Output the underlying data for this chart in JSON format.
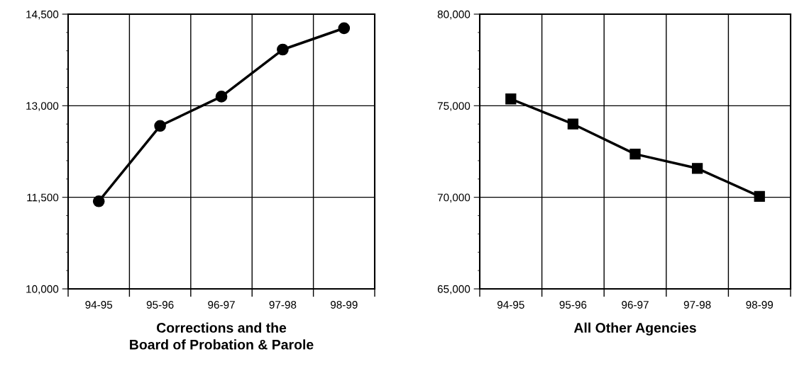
{
  "chart_data": [
    {
      "type": "line",
      "xlabel": "Corrections and the\nBoard of Probation & Parole",
      "categories": [
        "94-95",
        "95-96",
        "96-97",
        "97-98",
        "98-99"
      ],
      "series": [
        {
          "color": "#000000",
          "values": [
            11435,
            12670,
            13150,
            13920,
            14270
          ]
        }
      ],
      "marker": "circle",
      "line_style": "solid",
      "grid": true,
      "legend": false,
      "ylim": [
        10000,
        14500
      ],
      "yticks": [
        {
          "value": 10000,
          "label": "10,000"
        },
        {
          "value": 10300,
          "label": null
        },
        {
          "value": 10600,
          "label": null
        },
        {
          "value": 10900,
          "label": null
        },
        {
          "value": 11200,
          "label": null
        },
        {
          "value": 11500,
          "label": "11,500"
        },
        {
          "value": 11800,
          "label": null
        },
        {
          "value": 12100,
          "label": null
        },
        {
          "value": 12400,
          "label": null
        },
        {
          "value": 12700,
          "label": null
        },
        {
          "value": 13000,
          "label": "13,000"
        },
        {
          "value": 13300,
          "label": null
        },
        {
          "value": 13600,
          "label": null
        },
        {
          "value": 13900,
          "label": null
        },
        {
          "value": 14200,
          "label": null
        },
        {
          "value": 14500,
          "label": "14,500"
        }
      ]
    },
    {
      "type": "line",
      "xlabel": "All Other Agencies",
      "categories": [
        "94-95",
        "95-96",
        "96-97",
        "97-98",
        "98-99"
      ],
      "series": [
        {
          "color": "#000000",
          "values": [
            75370,
            74000,
            72360,
            71580,
            70050
          ]
        }
      ],
      "marker": "square",
      "line_style": "solid",
      "grid": true,
      "legend": false,
      "ylim": [
        65000,
        80000
      ],
      "yticks": [
        {
          "value": 65000,
          "label": "65,000"
        },
        {
          "value": 66000,
          "label": null
        },
        {
          "value": 67000,
          "label": null
        },
        {
          "value": 68000,
          "label": null
        },
        {
          "value": 69000,
          "label": null
        },
        {
          "value": 70000,
          "label": "70,000"
        },
        {
          "value": 71000,
          "label": null
        },
        {
          "value": 72000,
          "label": null
        },
        {
          "value": 73000,
          "label": null
        },
        {
          "value": 74000,
          "label": null
        },
        {
          "value": 75000,
          "label": "75,000"
        },
        {
          "value": 76000,
          "label": null
        },
        {
          "value": 77000,
          "label": null
        },
        {
          "value": 78000,
          "label": null
        },
        {
          "value": 79000,
          "label": null
        },
        {
          "value": 80000,
          "label": "80,000"
        }
      ]
    }
  ]
}
